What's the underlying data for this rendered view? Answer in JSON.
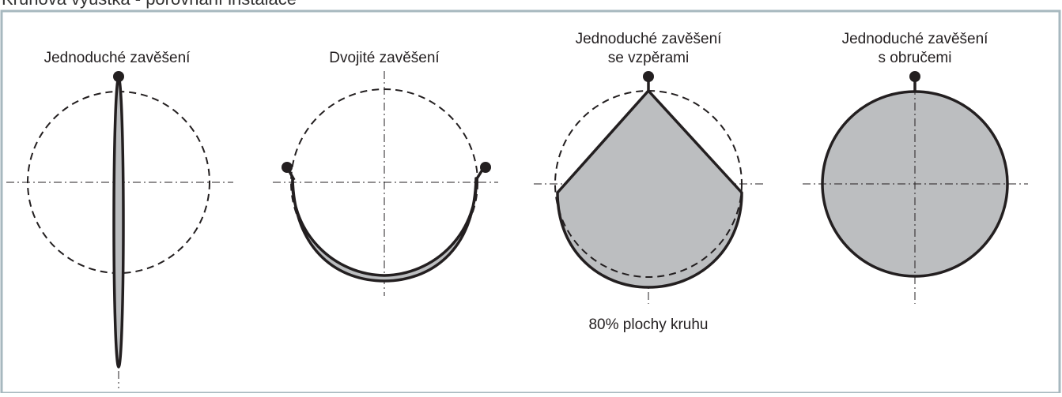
{
  "title": "Kruhová výústka - porovnání instalace",
  "panels": [
    {
      "label": [
        "Jednoduché zavěšení"
      ]
    },
    {
      "label": [
        "Dvojité zavěšení"
      ]
    },
    {
      "label": [
        "Jednoduché zavěšení",
        "se vzpěrami"
      ],
      "note": "80% plochy kruhu"
    },
    {
      "label": [
        "Jednoduché zavěšení",
        "s obručemi"
      ]
    }
  ]
}
